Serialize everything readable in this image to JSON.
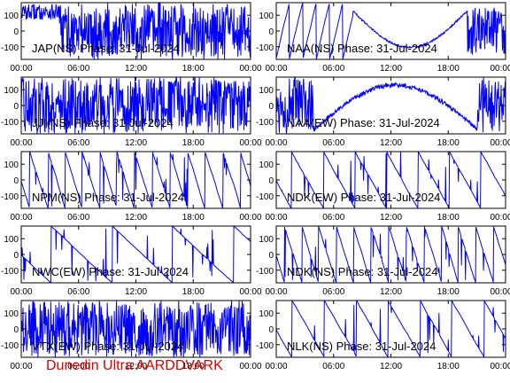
{
  "footer_text": "Dunedin Ultra AARDDVARK",
  "colors": {
    "trace": "#0000ff",
    "frame": "#000000",
    "footer": "#e00000",
    "background": "#ffffff"
  },
  "chart_data": [
    {
      "type": "line",
      "title": "JAP(NS) Phase: 31-Jul-2024",
      "x_ticks": [
        "00:00",
        "06:00",
        "12:00",
        "18:00",
        "00:00"
      ],
      "y_ticks": [
        "100",
        "0",
        "-100"
      ],
      "xlim_hours": [
        0,
        24
      ],
      "ylim": [
        -180,
        180
      ],
      "pattern": "dense-late"
    },
    {
      "type": "line",
      "title": "NAA(NS) Phase: 31-Jul-2024",
      "x_ticks": [
        "00:00",
        "06:00",
        "12:00",
        "18:00",
        "00:00"
      ],
      "y_ticks": [
        "100",
        "0",
        "-100"
      ],
      "xlim_hours": [
        0,
        24
      ],
      "ylim": [
        -180,
        180
      ],
      "pattern": "smooth-dip"
    },
    {
      "type": "line",
      "title": "JJI(NS) Phase: 31-Jul-2024",
      "x_ticks": [
        "00:00",
        "06:00",
        "12:00",
        "18:00",
        "00:00"
      ],
      "y_ticks": [
        "100",
        "0",
        "-100"
      ],
      "xlim_hours": [
        0,
        24
      ],
      "ylim": [
        -180,
        180
      ],
      "pattern": "dense-all"
    },
    {
      "type": "line",
      "title": "NAA(EW) Phase: 31-Jul-2024",
      "x_ticks": [
        "00:00",
        "06:00",
        "12:00",
        "18:00",
        "00:00"
      ],
      "y_ticks": [
        "100",
        "0",
        "-100"
      ],
      "xlim_hours": [
        0,
        24
      ],
      "ylim": [
        -180,
        180
      ],
      "pattern": "arc"
    },
    {
      "type": "line",
      "title": "NPM(NS) Phase: 31-Jul-2024",
      "x_ticks": [
        "00:00",
        "06:00",
        "12:00",
        "18:00",
        "00:00"
      ],
      "y_ticks": [
        "100",
        "0",
        "-100"
      ],
      "xlim_hours": [
        0,
        24
      ],
      "ylim": [
        -180,
        180
      ],
      "pattern": "wraps-fast"
    },
    {
      "type": "line",
      "title": "NDK(EW) Phase: 31-Jul-2024",
      "x_ticks": [
        "00:00",
        "06:00",
        "12:00",
        "18:00",
        "00:00"
      ],
      "y_ticks": [
        "100",
        "0",
        "-100"
      ],
      "xlim_hours": [
        0,
        24
      ],
      "ylim": [
        -180,
        180
      ],
      "pattern": "wraps-medium"
    },
    {
      "type": "line",
      "title": "NWC(EW) Phase: 31-Jul-2024",
      "x_ticks": [
        "00:00",
        "06:00",
        "12:00",
        "18:00",
        "00:00"
      ],
      "y_ticks": [
        "100",
        "0",
        "-100"
      ],
      "xlim_hours": [
        0,
        24
      ],
      "ylim": [
        -180,
        180
      ],
      "pattern": "wraps-slow"
    },
    {
      "type": "line",
      "title": "NDK(NS) Phase: 31-Jul-2024",
      "x_ticks": [
        "00:00",
        "06:00",
        "12:00",
        "18:00",
        "00:00"
      ],
      "y_ticks": [
        "100",
        "0",
        "-100"
      ],
      "xlim_hours": [
        0,
        24
      ],
      "ylim": [
        -180,
        180
      ],
      "pattern": "wraps-fast"
    },
    {
      "type": "line",
      "title": "VTX(EW) Phase: 31-Jul-2024",
      "x_ticks": [
        "00:00",
        "06:00",
        "12:00",
        "18:00",
        "00:00"
      ],
      "y_ticks": [
        "100",
        "0",
        "-100"
      ],
      "xlim_hours": [
        0,
        24
      ],
      "ylim": [
        -180,
        180
      ],
      "pattern": "dense-all"
    },
    {
      "type": "line",
      "title": "NLK(NS) Phase: 31-Jul-2024",
      "x_ticks": [
        "00:00",
        "06:00",
        "12:00",
        "18:00",
        "00:00"
      ],
      "y_ticks": [
        "100",
        "0",
        "-100"
      ],
      "xlim_hours": [
        0,
        24
      ],
      "ylim": [
        -180,
        180
      ],
      "pattern": "wraps-medium"
    }
  ]
}
